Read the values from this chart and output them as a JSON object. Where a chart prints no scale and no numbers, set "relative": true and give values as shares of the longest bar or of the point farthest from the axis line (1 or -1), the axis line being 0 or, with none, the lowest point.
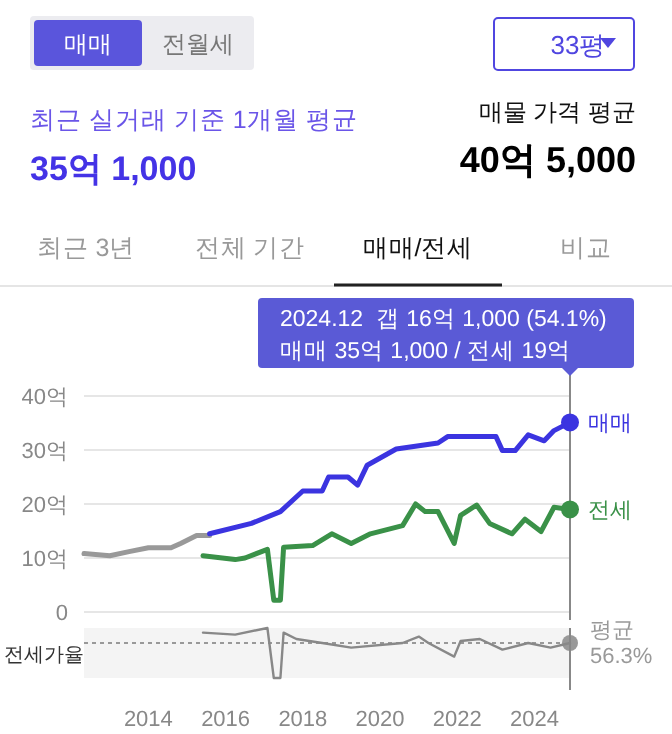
{
  "chart_data": [
    {
      "type": "line",
      "ylim": [
        0,
        40
      ],
      "yticks": [
        {
          "value": 0,
          "label": "0"
        },
        {
          "value": 10,
          "label": "10억"
        },
        {
          "value": 20,
          "label": "20억"
        },
        {
          "value": 30,
          "label": "30억"
        },
        {
          "value": 40,
          "label": "40억"
        }
      ],
      "xlim": [
        "2012-05",
        "2024-12"
      ],
      "tick_labels": "y",
      "grid": "y",
      "series": [
        {
          "color": "#999999",
          "x": [
            "2012-05",
            "2013-01",
            "2013-07",
            "2014-01",
            "2014-08",
            "2014-11",
            "2015-04",
            "2015-08"
          ],
          "values": [
            10.8,
            10.4,
            11.2,
            11.9,
            11.9,
            12.7,
            14.2,
            14.2
          ]
        },
        {
          "name": "매매",
          "color": "#3b34e0",
          "x": [
            "2015-08",
            "2016-09",
            "2017-06",
            "2018-01",
            "2018-07",
            "2018-09",
            "2019-03",
            "2019-06",
            "2019-09",
            "2020-06",
            "2021-07",
            "2021-10",
            "2023-01",
            "2023-03",
            "2023-07",
            "2023-11",
            "2024-04",
            "2024-07",
            "2024-12"
          ],
          "values": [
            14.5,
            16.4,
            18.6,
            22.4,
            22.4,
            25,
            25,
            23.5,
            27.2,
            30.2,
            31.3,
            32.5,
            32.5,
            29.9,
            29.9,
            32.8,
            31.7,
            33.6,
            35.1
          ]
        },
        {
          "name": "전세",
          "color": "#3a9148",
          "x": [
            "2015-06",
            "2016-04",
            "2016-07",
            "2017-02",
            "2017-04",
            "2017-06",
            "2017-07",
            "2018-04",
            "2018-10",
            "2019-04",
            "2019-10",
            "2020-08",
            "2020-12",
            "2021-03",
            "2021-07",
            "2021-12",
            "2022-02",
            "2022-07",
            "2022-11",
            "2023-06",
            "2023-10",
            "2024-03",
            "2024-07",
            "2024-12"
          ],
          "values": [
            10.4,
            9.7,
            10,
            11.6,
            2.2,
            2.2,
            12,
            12.3,
            14.5,
            12.7,
            14.5,
            16,
            20,
            18.6,
            18.6,
            12.7,
            17.9,
            19.8,
            16.4,
            14.5,
            17.2,
            14.9,
            19.4,
            19
          ]
        }
      ],
      "ref_lines": [
        {
          "axis": "x",
          "value": "2024-12",
          "color": "#888888"
        }
      ],
      "annotations": [
        "매매",
        "전월세",
        "33평",
        "최근 실거래 기준 1개월 평균",
        "35억 1,000",
        "매물 가격 평균",
        "40억 5,000",
        "최근 3년",
        "전체 기간",
        "매매/전세",
        "비교",
        "2024.12  갭 16억 1,000 (54.1%)",
        "매매 35억 1,000 / 전세 19억"
      ]
    },
    {
      "type": "line",
      "relative": true,
      "ylabel": "전세가율",
      "xlim": [
        "2012-05",
        "2024-12"
      ],
      "xticks": [
        "2014",
        "2016",
        "2018",
        "2020",
        "2022",
        "2024"
      ],
      "tick_labels": "x",
      "series": [
        {
          "color": "#888888",
          "x": [
            "2015-06",
            "2016-04",
            "2017-02",
            "2017-04",
            "2017-06",
            "2017-07",
            "2017-11",
            "2018-07",
            "2019-04",
            "2020-08",
            "2021-01",
            "2021-04",
            "2021-12",
            "2022-02",
            "2022-08",
            "2023-03",
            "2023-11",
            "2024-06",
            "2024-12"
          ],
          "values": [
            0.91,
            0.87,
            1,
            0,
            0,
            0.91,
            0.78,
            0.7,
            0.61,
            0.7,
            0.83,
            0.7,
            0.43,
            0.74,
            0.78,
            0.57,
            0.7,
            0.61,
            0.7
          ]
        }
      ],
      "ref_lines": [
        {
          "axis": "y",
          "value": 0.7,
          "label": "평균 56.3%",
          "line_style": "dotted"
        },
        {
          "axis": "x",
          "value": "2024-12",
          "color": "#888888"
        }
      ]
    }
  ]
}
